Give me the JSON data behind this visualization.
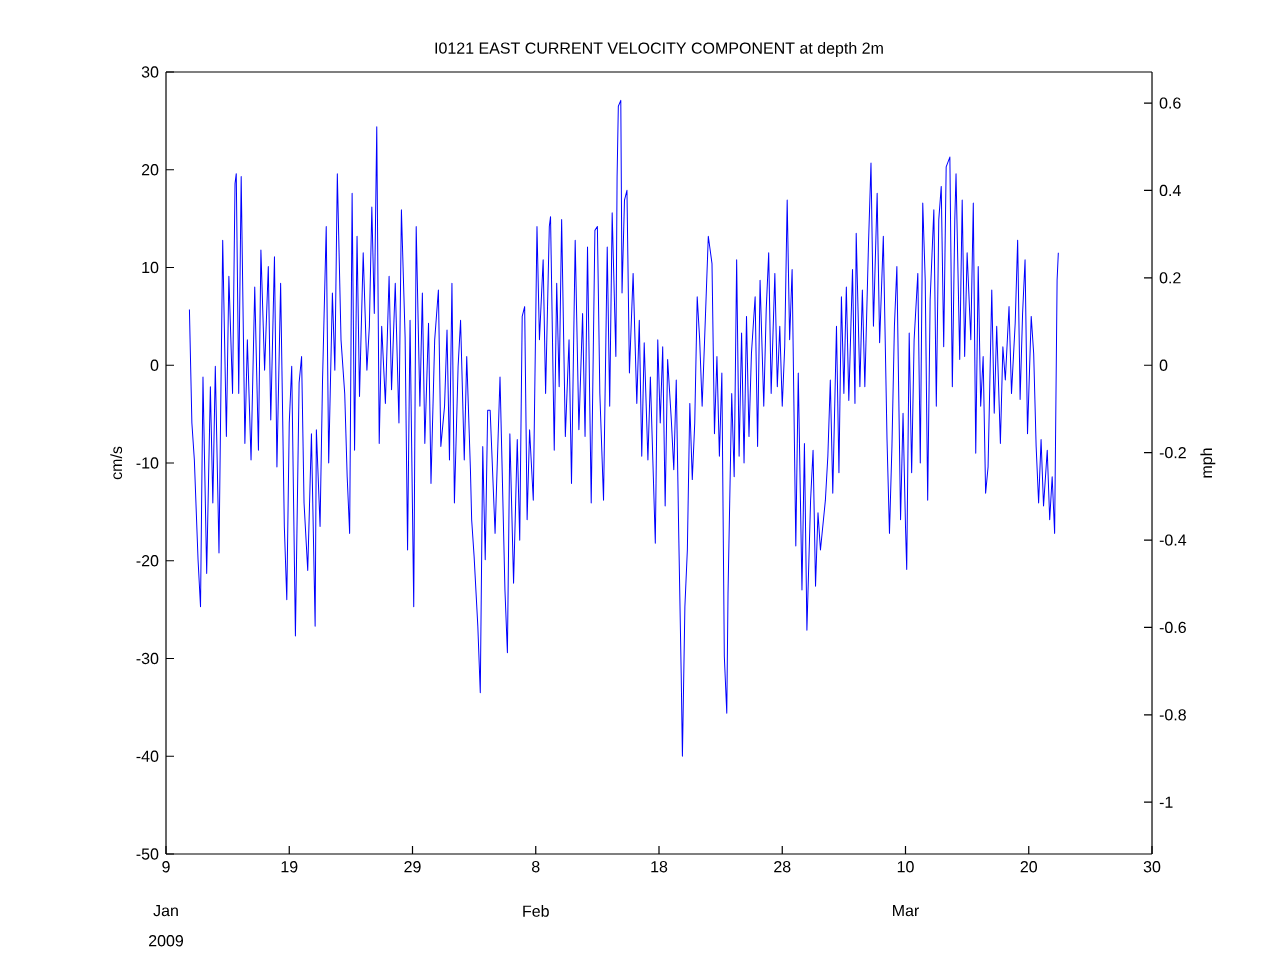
{
  "chart_data": {
    "type": "line",
    "title": "I0121  EAST CURRENT VELOCITY COMPONENT at depth 2m",
    "ylabel": "cm/s",
    "y2label": "mph",
    "xlim": [
      "2009-01-09",
      "2009-03-30"
    ],
    "ylim": [
      -50,
      30
    ],
    "y2lim": [
      -1.1185,
      0.6711
    ],
    "xticks": [
      {
        "value": "2009-01-09",
        "label": "9"
      },
      {
        "value": "2009-01-19",
        "label": "19"
      },
      {
        "value": "2009-01-29",
        "label": "29"
      },
      {
        "value": "2009-02-08",
        "label": "8"
      },
      {
        "value": "2009-02-18",
        "label": "18"
      },
      {
        "value": "2009-02-28",
        "label": "28"
      },
      {
        "value": "2009-03-10",
        "label": "10"
      },
      {
        "value": "2009-03-20",
        "label": "20"
      },
      {
        "value": "2009-03-30",
        "label": "30"
      }
    ],
    "yticks": [
      -50,
      -40,
      -30,
      -20,
      -10,
      0,
      10,
      20,
      30
    ],
    "y2ticks": [
      -1,
      -0.8,
      -0.6,
      -0.4,
      -0.2,
      0,
      0.2,
      0.4,
      0.6
    ],
    "annotations": [
      "Jan",
      "Feb",
      "Mar",
      "2009"
    ],
    "grid": false,
    "marker": "none",
    "line_style": "solid",
    "series": [
      {
        "color": "#0000ff",
        "x": [
          "2009-01-10T21:36",
          "2009-01-11T02:24",
          "2009-01-11T07:12",
          "2009-01-11T14:24",
          "2009-01-11T19:12",
          "2009-01-12T00:00",
          "2009-01-12T07:12",
          "2009-01-12T14:24",
          "2009-01-12T19:12",
          "2009-01-13T00:00",
          "2009-01-13T07:12",
          "2009-01-13T14:24",
          "2009-01-13T21:36",
          "2009-01-14T02:24",
          "2009-01-14T09:36",
          "2009-01-14T14:24",
          "2009-01-14T16:48",
          "2009-01-14T21:36",
          "2009-01-15T02:24",
          "2009-01-15T09:36",
          "2009-01-15T14:24",
          "2009-01-15T21:36",
          "2009-01-16T04:48",
          "2009-01-16T12:00",
          "2009-01-16T16:48",
          "2009-01-17T00:00",
          "2009-01-17T07:12",
          "2009-01-17T12:00",
          "2009-01-17T19:12",
          "2009-01-18T00:00",
          "2009-01-18T07:12",
          "2009-01-18T14:24",
          "2009-01-18T19:12",
          "2009-01-19T00:00",
          "2009-01-19T04:48",
          "2009-01-19T12:00",
          "2009-01-19T19:12",
          "2009-01-20T00:00",
          "2009-01-20T04:48",
          "2009-01-20T12:00",
          "2009-01-20T19:12",
          "2009-01-21T02:24",
          "2009-01-21T04:48",
          "2009-01-21T12:00",
          "2009-01-21T16:48",
          "2009-01-22T00:00",
          "2009-01-22T04:48",
          "2009-01-22T12:00",
          "2009-01-22T16:48",
          "2009-01-22T21:36",
          "2009-01-23T04:48",
          "2009-01-23T12:00",
          "2009-01-23T16:48",
          "2009-01-23T21:36",
          "2009-01-24T02:24",
          "2009-01-24T07:12",
          "2009-01-24T12:00",
          "2009-01-24T16:48",
          "2009-01-25T00:00",
          "2009-01-25T07:12",
          "2009-01-25T12:00",
          "2009-01-25T16:48",
          "2009-01-25T21:36",
          "2009-01-26T02:24",
          "2009-01-26T07:12",
          "2009-01-26T12:00",
          "2009-01-26T19:12",
          "2009-01-27T02:24",
          "2009-01-27T07:12",
          "2009-01-27T14:24",
          "2009-01-27T21:36",
          "2009-01-28T02:24",
          "2009-01-28T09:36",
          "2009-01-28T14:24",
          "2009-01-28T19:12",
          "2009-01-29T02:24",
          "2009-01-29T07:12",
          "2009-01-29T14:24",
          "2009-01-29T19:12",
          "2009-01-30T00:00",
          "2009-01-30T07:12",
          "2009-01-30T12:00",
          "2009-01-30T19:12",
          "2009-01-31T02:24",
          "2009-01-31T07:12",
          "2009-01-31T14:24",
          "2009-01-31T19:12",
          "2009-02-01T00:00",
          "2009-02-01T04:48",
          "2009-02-01T09:36",
          "2009-02-01T16:48",
          "2009-02-01T21:36",
          "2009-02-02T04:48",
          "2009-02-02T09:36",
          "2009-02-02T16:48",
          "2009-02-02T19:12",
          "2009-02-03T00:00",
          "2009-02-03T07:12",
          "2009-02-03T12:00",
          "2009-02-03T16:48",
          "2009-02-03T21:36",
          "2009-02-04T02:24",
          "2009-02-04T07:12",
          "2009-02-04T16:48",
          "2009-02-05T02:24",
          "2009-02-05T12:00",
          "2009-02-05T16:48",
          "2009-02-05T21:36",
          "2009-02-06T04:48",
          "2009-02-06T12:00",
          "2009-02-06T16:48",
          "2009-02-06T21:36",
          "2009-02-07T02:24",
          "2009-02-07T07:12",
          "2009-02-07T12:00",
          "2009-02-07T19:12",
          "2009-02-08T02:24",
          "2009-02-08T07:12",
          "2009-02-08T14:24",
          "2009-02-08T19:12",
          "2009-02-09T02:24",
          "2009-02-09T04:48",
          "2009-02-09T12:00",
          "2009-02-09T16:48",
          "2009-02-09T21:36",
          "2009-02-10T02:24",
          "2009-02-10T09:36",
          "2009-02-10T16:48",
          "2009-02-10T21:36",
          "2009-02-11T04:48",
          "2009-02-11T12:00",
          "2009-02-11T19:12",
          "2009-02-12T00:00",
          "2009-02-12T04:48",
          "2009-02-12T12:00",
          "2009-02-12T19:12",
          "2009-02-13T00:00",
          "2009-02-13T04:48",
          "2009-02-13T12:00",
          "2009-02-13T19:12",
          "2009-02-14T00:00",
          "2009-02-14T04:48",
          "2009-02-14T12:00",
          "2009-02-14T14:24",
          "2009-02-14T16:48",
          "2009-02-14T21:36",
          "2009-02-15T00:00",
          "2009-02-15T04:48",
          "2009-02-15T09:36",
          "2009-02-15T14:24",
          "2009-02-15T21:36",
          "2009-02-16T04:48",
          "2009-02-16T09:36",
          "2009-02-16T14:24",
          "2009-02-16T19:12",
          "2009-02-17T02:24",
          "2009-02-17T07:12",
          "2009-02-17T12:00",
          "2009-02-17T16:48",
          "2009-02-17T21:36",
          "2009-02-18T02:24",
          "2009-02-18T07:12",
          "2009-02-18T12:00",
          "2009-02-18T16:48",
          "2009-02-19T00:00",
          "2009-02-19T04:48",
          "2009-02-19T09:36",
          "2009-02-19T14:24",
          "2009-02-19T19:12",
          "2009-02-19T21:36",
          "2009-02-20T02:24",
          "2009-02-20T07:12",
          "2009-02-20T12:00",
          "2009-02-20T16:48",
          "2009-02-20T21:36",
          "2009-02-21T02:24",
          "2009-02-21T07:12",
          "2009-02-21T12:00",
          "2009-02-21T16:48",
          "2009-02-22T00:00",
          "2009-02-22T07:12",
          "2009-02-22T12:00",
          "2009-02-22T16:48",
          "2009-02-22T21:36",
          "2009-02-23T02:24",
          "2009-02-23T07:12",
          "2009-02-23T12:00",
          "2009-02-23T14:24",
          "2009-02-23T21:36",
          "2009-02-24T02:24",
          "2009-02-24T07:12",
          "2009-02-24T12:00",
          "2009-02-24T16:48",
          "2009-02-24T21:36",
          "2009-02-25T02:24",
          "2009-02-25T07:12",
          "2009-02-25T12:00",
          "2009-02-25T19:12",
          "2009-02-26T00:00",
          "2009-02-26T04:48",
          "2009-02-26T12:00",
          "2009-02-26T16:48",
          "2009-02-26T21:36",
          "2009-02-27T02:24",
          "2009-02-27T09:36",
          "2009-02-27T14:24",
          "2009-02-27T19:12",
          "2009-02-28T00:00",
          "2009-02-28T04:48",
          "2009-02-28T09:36",
          "2009-02-28T14:24",
          "2009-02-28T19:12",
          "2009-03-01T02:24",
          "2009-03-01T07:12",
          "2009-03-01T14:24",
          "2009-03-01T19:12",
          "2009-03-02T00:00",
          "2009-03-02T07:12",
          "2009-03-02T12:00",
          "2009-03-02T16:48",
          "2009-03-02T21:36",
          "2009-03-03T02:24",
          "2009-03-03T12:00",
          "2009-03-03T16:48",
          "2009-03-03T21:36",
          "2009-03-04T02:24",
          "2009-03-04T09:36",
          "2009-03-04T14:24",
          "2009-03-04T19:12",
          "2009-03-05T00:00",
          "2009-03-05T04:48",
          "2009-03-05T09:36",
          "2009-03-05T16:48",
          "2009-03-05T21:36",
          "2009-03-06T00:00",
          "2009-03-06T07:12",
          "2009-03-06T12:00",
          "2009-03-06T16:48",
          "2009-03-07T00:00",
          "2009-03-07T04:48",
          "2009-03-07T09:36",
          "2009-03-07T16:48",
          "2009-03-07T21:36",
          "2009-03-08T04:48",
          "2009-03-08T12:00",
          "2009-03-08T16:48",
          "2009-03-08T21:36",
          "2009-03-09T02:24",
          "2009-03-09T07:12",
          "2009-03-09T14:24",
          "2009-03-09T19:12",
          "2009-03-10T00:00",
          "2009-03-10T02:24",
          "2009-03-10T07:12",
          "2009-03-10T12:00",
          "2009-03-10T16:48",
          "2009-03-11T00:00",
          "2009-03-11T04:48",
          "2009-03-11T09:36",
          "2009-03-11T14:24",
          "2009-03-11T19:12",
          "2009-03-12T00:00",
          "2009-03-12T07:12",
          "2009-03-12T12:00",
          "2009-03-12T16:48",
          "2009-03-12T21:36",
          "2009-03-13T02:24",
          "2009-03-13T07:12",
          "2009-03-13T14:24",
          "2009-03-13T19:12",
          "2009-03-14T00:00",
          "2009-03-14T02:24",
          "2009-03-14T09:36",
          "2009-03-14T14:24",
          "2009-03-14T19:12",
          "2009-03-15T00:00",
          "2009-03-15T07:12",
          "2009-03-15T12:00",
          "2009-03-15T16:48",
          "2009-03-15T21:36",
          "2009-03-16T02:24",
          "2009-03-16T07:12",
          "2009-03-16T12:00",
          "2009-03-16T16:48",
          "2009-03-17T00:00",
          "2009-03-17T04:48",
          "2009-03-17T09:36",
          "2009-03-17T16:48",
          "2009-03-17T21:36",
          "2009-03-18T02:24",
          "2009-03-18T09:36",
          "2009-03-18T14:24",
          "2009-03-18T21:36",
          "2009-03-19T02:24",
          "2009-03-19T07:12",
          "2009-03-19T12:00",
          "2009-03-19T16:48",
          "2009-03-19T21:36",
          "2009-03-20T04:48",
          "2009-03-20T09:36",
          "2009-03-20T14:24",
          "2009-03-20T19:12",
          "2009-03-21T00:00",
          "2009-03-21T04:48",
          "2009-03-21T12:00",
          "2009-03-21T16:48",
          "2009-03-21T21:36",
          "2009-03-22T02:24",
          "2009-03-22T07:12",
          "2009-03-22T09:36"
        ],
        "values": [
          5.7,
          -5.9,
          -9.7,
          -19.9,
          -24.7,
          -1.2,
          -21.3,
          -2.2,
          -14.1,
          -0.1,
          -19.2,
          12.8,
          -7.3,
          9.1,
          -2.9,
          18.6,
          19.6,
          -2.9,
          19.3,
          -8.0,
          2.6,
          -9.7,
          8.0,
          -8.7,
          11.8,
          -0.5,
          10.1,
          -5.6,
          11.1,
          -10.4,
          8.4,
          -16.5,
          -24.0,
          -5.9,
          -0.1,
          -27.7,
          -1.8,
          0.9,
          -14.1,
          -21.0,
          -7.0,
          -26.7,
          -6.6,
          -16.5,
          -1.5,
          14.2,
          -10.0,
          7.4,
          -0.5,
          19.6,
          2.6,
          -2.9,
          -11.4,
          -17.2,
          17.6,
          -8.7,
          13.2,
          -3.2,
          11.5,
          -0.5,
          4.0,
          16.2,
          5.3,
          24.4,
          -8.0,
          4.0,
          -3.9,
          9.1,
          -2.5,
          8.4,
          -5.9,
          15.9,
          2.9,
          -18.9,
          4.6,
          -24.7,
          14.2,
          -4.2,
          7.4,
          -8.0,
          4.3,
          -12.1,
          2.6,
          7.7,
          -8.3,
          -4.2,
          3.6,
          -9.7,
          8.4,
          -14.1,
          -0.1,
          4.6,
          -9.7,
          0.9,
          -10.7,
          -15.8,
          -19.6,
          -26.7,
          -33.5,
          -8.3,
          -19.9,
          -4.6,
          -4.6,
          -17.2,
          -1.2,
          -23.0,
          -29.4,
          -7.0,
          -22.3,
          -7.6,
          -17.9,
          5.0,
          6.0,
          -15.8,
          -6.6,
          -13.8,
          14.2,
          2.6,
          10.8,
          -2.9,
          14.2,
          15.2,
          -8.7,
          8.4,
          -2.2,
          14.9,
          -7.3,
          2.6,
          -12.1,
          12.8,
          -6.6,
          5.3,
          -7.3,
          12.1,
          -14.1,
          13.8,
          14.2,
          -2.9,
          -13.8,
          12.1,
          -4.2,
          15.6,
          0.9,
          19.3,
          26.5,
          27.1,
          7.4,
          16.9,
          17.9,
          -0.8,
          9.4,
          -3.9,
          4.6,
          -9.3,
          2.3,
          -9.7,
          -1.2,
          -9.7,
          -18.2,
          2.6,
          -5.9,
          1.9,
          -14.4,
          0.6,
          -5.6,
          -10.7,
          -1.5,
          -17.2,
          -31.5,
          -40.0,
          -24.7,
          -18.9,
          -3.9,
          -11.7,
          -5.9,
          7.0,
          2.6,
          -4.2,
          2.6,
          13.2,
          10.4,
          -7.0,
          0.9,
          -9.3,
          -0.8,
          -29.8,
          -35.6,
          -23.3,
          -2.9,
          -11.4,
          10.8,
          -9.3,
          3.3,
          -10.0,
          5.0,
          -7.3,
          1.2,
          7.0,
          -8.3,
          8.7,
          -4.2,
          5.7,
          11.5,
          -2.9,
          9.4,
          -2.2,
          4.0,
          -4.2,
          1.9,
          16.9,
          2.6,
          9.8,
          -18.5,
          -0.8,
          -23.0,
          -8.0,
          -27.1,
          -13.8,
          -8.7,
          -22.6,
          -15.1,
          -18.9,
          -13.8,
          -9.3,
          -1.5,
          -13.1,
          4.0,
          -11.0,
          7.0,
          -2.9,
          8.0,
          -3.6,
          9.8,
          -3.9,
          13.5,
          -2.2,
          7.7,
          -2.2,
          12.5,
          20.7,
          4.0,
          17.6,
          2.3,
          13.2,
          -7.6,
          -17.2,
          -8.3,
          4.0,
          10.1,
          -15.8,
          -4.9,
          -16.5,
          -20.9,
          3.3,
          -11.0,
          2.6,
          9.4,
          -10.0,
          16.6,
          8.7,
          -13.8,
          6.7,
          15.9,
          -4.2,
          14.9,
          18.3,
          1.9,
          20.3,
          21.3,
          -2.2,
          14.9,
          19.6,
          0.6,
          16.9,
          0.9,
          11.5,
          2.6,
          16.6,
          -9.0,
          10.1,
          -4.2,
          0.9,
          -13.1,
          -10.4,
          7.7,
          -4.9,
          4.0,
          -8.0,
          1.9,
          -1.5,
          6.0,
          -2.9,
          4.3,
          12.8,
          -3.5,
          5.3,
          10.8,
          -7.0,
          5.0,
          1.2,
          -8.3,
          -14.1,
          -7.6,
          -14.4,
          -8.7,
          -15.8,
          -11.4,
          -17.2,
          8.7,
          11.5
        ]
      }
    ]
  }
}
